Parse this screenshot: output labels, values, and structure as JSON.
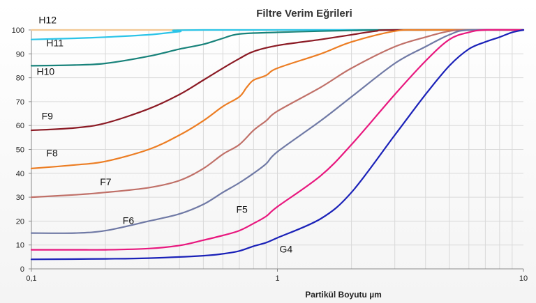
{
  "chart_data": {
    "type": "line",
    "title": "Filtre Verim Eğrileri",
    "xlabel": "Partikül Boyutu µm",
    "ylabel": "",
    "x_scale": "log",
    "xlim": [
      0.1,
      10
    ],
    "ylim": [
      0,
      100
    ],
    "x_ticks": [
      0.1,
      1,
      10
    ],
    "x_tick_labels": [
      "0,1",
      "1",
      "10"
    ],
    "y_ticks": [
      0,
      10,
      20,
      30,
      40,
      50,
      60,
      70,
      80,
      90,
      100
    ],
    "grid": true,
    "legend": "inline labels",
    "series": [
      {
        "name": "H12",
        "color": "#f2c894",
        "points": [
          [
            0.1,
            100
          ],
          [
            10,
            100
          ]
        ]
      },
      {
        "name": "H11",
        "color": "#2bc4e8",
        "points": [
          [
            0.1,
            96
          ],
          [
            0.15,
            96.5
          ],
          [
            0.2,
            97
          ],
          [
            0.3,
            98
          ],
          [
            0.4,
            99.3
          ],
          [
            0.5,
            100
          ],
          [
            10,
            100
          ]
        ]
      },
      {
        "name": "H10",
        "color": "#17827a",
        "points": [
          [
            0.1,
            85
          ],
          [
            0.15,
            85.3
          ],
          [
            0.2,
            86
          ],
          [
            0.3,
            89
          ],
          [
            0.4,
            92
          ],
          [
            0.5,
            94
          ],
          [
            0.6,
            96.5
          ],
          [
            0.7,
            98.3
          ],
          [
            1,
            99
          ],
          [
            1.5,
            99.5
          ],
          [
            2,
            99.8
          ],
          [
            3,
            100
          ],
          [
            10,
            100
          ]
        ]
      },
      {
        "name": "F9",
        "color": "#8b1a24",
        "points": [
          [
            0.1,
            58
          ],
          [
            0.15,
            59
          ],
          [
            0.2,
            61
          ],
          [
            0.3,
            67
          ],
          [
            0.4,
            73
          ],
          [
            0.5,
            79
          ],
          [
            0.6,
            84
          ],
          [
            0.7,
            88
          ],
          [
            0.8,
            91
          ],
          [
            1,
            93.5
          ],
          [
            1.5,
            96
          ],
          [
            2,
            98
          ],
          [
            2.5,
            99.5
          ],
          [
            3,
            100
          ],
          [
            10,
            100
          ]
        ]
      },
      {
        "name": "F8",
        "color": "#ec7d23",
        "points": [
          [
            0.1,
            42
          ],
          [
            0.15,
            43.5
          ],
          [
            0.2,
            45
          ],
          [
            0.3,
            50
          ],
          [
            0.4,
            56
          ],
          [
            0.5,
            62
          ],
          [
            0.6,
            68
          ],
          [
            0.7,
            72
          ],
          [
            0.75,
            76
          ],
          [
            0.8,
            79
          ],
          [
            0.9,
            81
          ],
          [
            1,
            84
          ],
          [
            1.5,
            90
          ],
          [
            2,
            95
          ],
          [
            3,
            99.5
          ],
          [
            4,
            100
          ],
          [
            10,
            100
          ]
        ]
      },
      {
        "name": "F7",
        "color": "#c07068",
        "points": [
          [
            0.1,
            30
          ],
          [
            0.15,
            31
          ],
          [
            0.2,
            32
          ],
          [
            0.3,
            34
          ],
          [
            0.4,
            37
          ],
          [
            0.5,
            42
          ],
          [
            0.6,
            48
          ],
          [
            0.7,
            52
          ],
          [
            0.8,
            58
          ],
          [
            0.9,
            62
          ],
          [
            1,
            66
          ],
          [
            1.5,
            76
          ],
          [
            2,
            84
          ],
          [
            3,
            93
          ],
          [
            4,
            97
          ],
          [
            5,
            99.5
          ],
          [
            6,
            100
          ],
          [
            10,
            100
          ]
        ]
      },
      {
        "name": "F6",
        "color": "#6f79a5",
        "points": [
          [
            0.1,
            15
          ],
          [
            0.15,
            15
          ],
          [
            0.2,
            16
          ],
          [
            0.3,
            20
          ],
          [
            0.4,
            23
          ],
          [
            0.5,
            27
          ],
          [
            0.6,
            32
          ],
          [
            0.7,
            36
          ],
          [
            0.8,
            40
          ],
          [
            0.9,
            44
          ],
          [
            1,
            49
          ],
          [
            1.5,
            62
          ],
          [
            2,
            72
          ],
          [
            3,
            86
          ],
          [
            4,
            93
          ],
          [
            5,
            98
          ],
          [
            6,
            100
          ],
          [
            10,
            100
          ]
        ]
      },
      {
        "name": "F5",
        "color": "#e8177e",
        "points": [
          [
            0.1,
            8
          ],
          [
            0.15,
            8
          ],
          [
            0.2,
            8
          ],
          [
            0.3,
            8.5
          ],
          [
            0.4,
            9.8
          ],
          [
            0.5,
            12
          ],
          [
            0.6,
            14
          ],
          [
            0.7,
            16
          ],
          [
            0.8,
            19
          ],
          [
            0.9,
            22
          ],
          [
            1,
            26
          ],
          [
            1.5,
            39
          ],
          [
            2,
            52
          ],
          [
            3,
            73
          ],
          [
            4,
            87
          ],
          [
            5,
            96
          ],
          [
            6,
            99
          ],
          [
            7,
            100
          ],
          [
            10,
            100
          ]
        ]
      },
      {
        "name": "G4",
        "color": "#1a21b8",
        "points": [
          [
            0.1,
            4
          ],
          [
            0.2,
            4.2
          ],
          [
            0.3,
            4.5
          ],
          [
            0.5,
            5.5
          ],
          [
            0.6,
            6.3
          ],
          [
            0.7,
            7.5
          ],
          [
            0.8,
            9.5
          ],
          [
            0.9,
            11
          ],
          [
            1,
            13
          ],
          [
            1.5,
            21
          ],
          [
            2,
            32
          ],
          [
            3,
            56
          ],
          [
            4,
            73
          ],
          [
            5,
            85
          ],
          [
            6,
            92
          ],
          [
            7,
            95
          ],
          [
            8,
            97
          ],
          [
            9,
            99
          ],
          [
            10,
            100
          ]
        ]
      }
    ],
    "labels": [
      {
        "text": "H12",
        "x": 0.107,
        "y": 102.7
      },
      {
        "text": "H11",
        "x": 0.115,
        "y": 93.2
      },
      {
        "text": "H10",
        "x": 0.105,
        "y": 81.2
      },
      {
        "text": "F9",
        "x": 0.11,
        "y": 62.5
      },
      {
        "text": "F8",
        "x": 0.115,
        "y": 47.1
      },
      {
        "text": "F7",
        "x": 0.19,
        "y": 35
      },
      {
        "text": "F6",
        "x": 0.235,
        "y": 18.8
      },
      {
        "text": "F5",
        "x": 0.68,
        "y": 23.4
      },
      {
        "text": "G4",
        "x": 1.02,
        "y": 6.9
      }
    ]
  }
}
